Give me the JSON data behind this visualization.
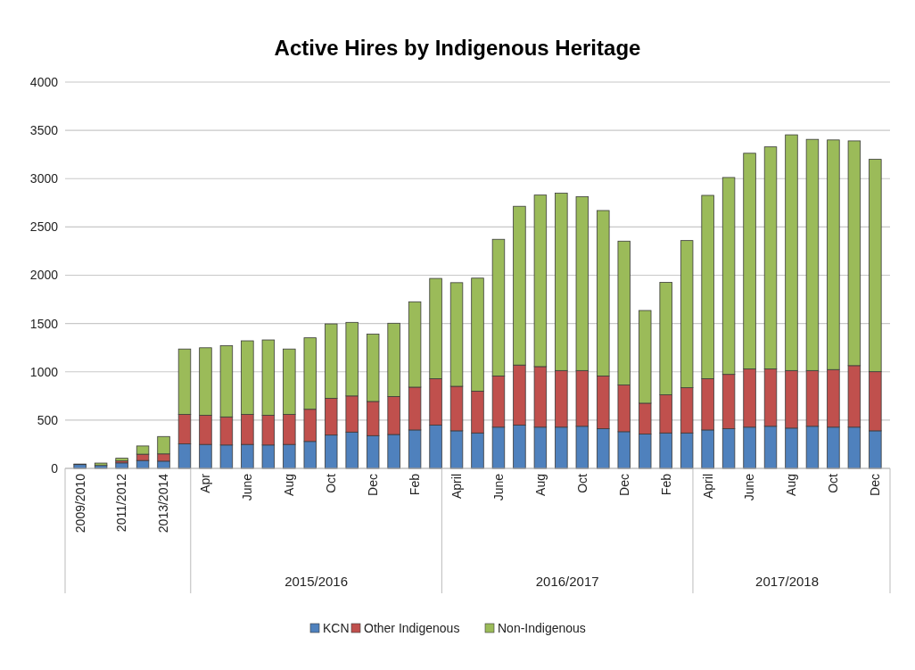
{
  "chart_data": {
    "type": "bar",
    "title": "Active Hires by Indigenous Heritage",
    "stacked": true,
    "categories": [
      "2009/2010",
      null,
      "2011/2012",
      null,
      "2013/2014",
      null,
      "Apr",
      null,
      "June",
      null,
      "Aug",
      null,
      "Oct",
      null,
      "Dec",
      null,
      "Feb",
      null,
      "April",
      null,
      "June",
      null,
      "Aug",
      null,
      "Oct",
      null,
      "Dec",
      null,
      "Feb",
      null,
      "April",
      null,
      "June",
      null,
      "Aug",
      null,
      "Oct",
      null,
      "Dec"
    ],
    "series": [
      {
        "name": "KCN",
        "color": "#4f81bd",
        "values": [
          40,
          30,
          57,
          82,
          75,
          254,
          248,
          242,
          248,
          242,
          248,
          279,
          345,
          376,
          339,
          351,
          398,
          449,
          389,
          367,
          427,
          449,
          427,
          427,
          436,
          411,
          380,
          355,
          367,
          367,
          398,
          411,
          427,
          436,
          417,
          436,
          427,
          427,
          389
        ]
      },
      {
        "name": "Other Indigenous",
        "color": "#c0504d",
        "values": [
          0,
          0,
          20,
          65,
          75,
          304,
          301,
          291,
          310,
          307,
          310,
          333,
          380,
          374,
          354,
          393,
          443,
          480,
          461,
          433,
          530,
          621,
          627,
          586,
          577,
          546,
          483,
          320,
          395,
          468,
          531,
          562,
          602,
          593,
          596,
          577,
          596,
          637,
          612
        ]
      },
      {
        "name": "Non-Indigenous",
        "color": "#9bbb59",
        "values": [
          5,
          25,
          28,
          85,
          180,
          678,
          700,
          738,
          763,
          781,
          678,
          740,
          771,
          762,
          697,
          759,
          884,
          1038,
          1073,
          1170,
          1415,
          1644,
          1776,
          1836,
          1801,
          1713,
          1490,
          960,
          1164,
          1524,
          1898,
          2039,
          2234,
          2300,
          2441,
          2394,
          2378,
          2327,
          2199
        ]
      }
    ],
    "annotations": [
      "2015/2016",
      "2016/2017",
      "2017/2018"
    ],
    "ylim": [
      0,
      4000
    ],
    "yticks": [
      0,
      500,
      1000,
      1500,
      2000,
      2500,
      3000,
      3500,
      4000
    ],
    "grid": "y",
    "legend": "bottom"
  }
}
